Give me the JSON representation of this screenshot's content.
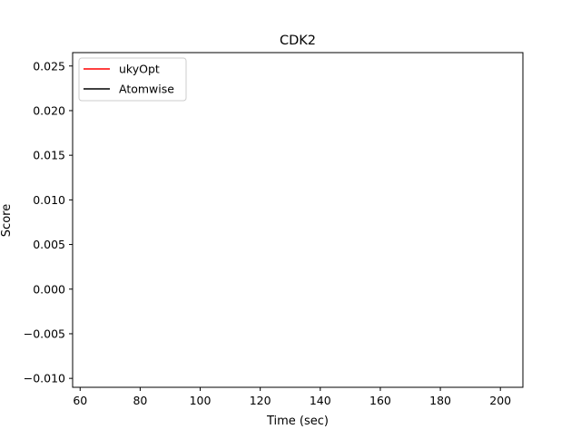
{
  "chart_data": {
    "type": "line",
    "title": "CDK2",
    "xlabel": "Time (sec)",
    "ylabel": "Score",
    "xlim": [
      57.5,
      207.5
    ],
    "ylim": [
      -0.011,
      0.0265
    ],
    "x_ticks": [
      60,
      80,
      100,
      120,
      140,
      160,
      180,
      200
    ],
    "x_tick_labels": [
      "60",
      "80",
      "100",
      "120",
      "140",
      "160",
      "180",
      "200"
    ],
    "y_ticks": [
      -0.01,
      -0.005,
      0.0,
      0.005,
      0.01,
      0.015,
      0.02,
      0.025
    ],
    "y_tick_labels": [
      "−0.010",
      "−0.005",
      "0.000",
      "0.005",
      "0.010",
      "0.015",
      "0.020",
      "0.025"
    ],
    "grid": false,
    "legend_position": "top-left",
    "series": [
      {
        "name": "ukyOpt",
        "color": "#ff0000",
        "x": [],
        "y": []
      },
      {
        "name": "Atomwise",
        "color": "#000000",
        "x": [],
        "y": []
      }
    ]
  }
}
